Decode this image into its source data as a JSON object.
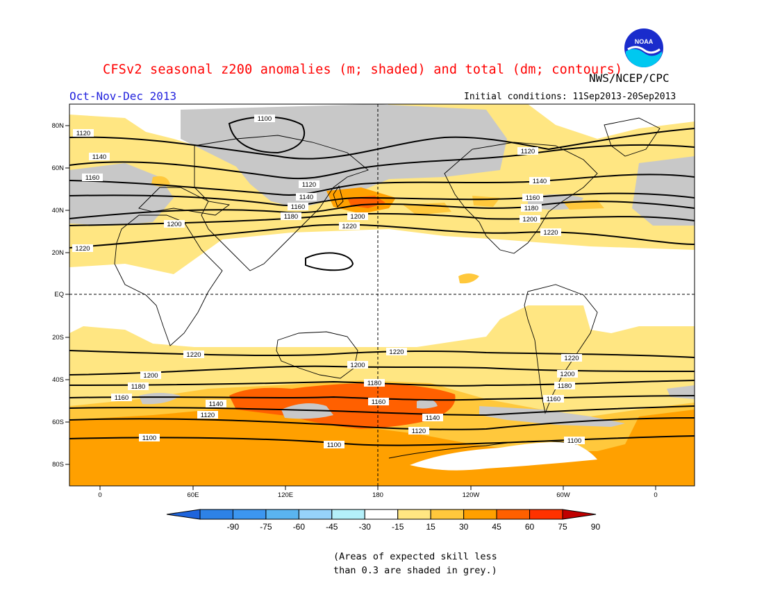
{
  "header": {
    "title": "CFSv2 seasonal z200 anomalies (m; shaded) and total (dm; contours)",
    "agency": "NWS/NCEP/CPC",
    "season": "Oct-Nov-Dec 2013",
    "initial_conditions": "Initial conditions: 11Sep2013-20Sep2013"
  },
  "logo": {
    "icon": "noaa-logo-icon",
    "text": "NOAA"
  },
  "axes": {
    "lat_ticks": [
      "80N",
      "60N",
      "40N",
      "20N",
      "EQ",
      "20S",
      "40S",
      "60S",
      "80S"
    ],
    "lon_ticks": [
      "0",
      "60E",
      "120E",
      "180",
      "120W",
      "60W",
      "0"
    ]
  },
  "colorbar": {
    "labels": [
      "-90",
      "-75",
      "-60",
      "-45",
      "-30",
      "-15",
      "15",
      "30",
      "45",
      "60",
      "75",
      "90"
    ],
    "colors": [
      "#1e64dc",
      "#2d82e6",
      "#3c96f0",
      "#5ab4f0",
      "#96d2fa",
      "#b4f0fa",
      "#ffffff",
      "#ffe682",
      "#ffc83c",
      "#ffa000",
      "#ff6000",
      "#ff3200",
      "#c00000"
    ]
  },
  "contours": [
    {
      "label": "1220"
    },
    {
      "label": "1200"
    },
    {
      "label": "1180"
    },
    {
      "label": "1160"
    },
    {
      "label": "1140"
    },
    {
      "label": "1120"
    },
    {
      "label": "1100"
    }
  ],
  "note": {
    "line1": "(Areas of expected skill less",
    "line2": "than 0.3 are shaded in grey.)"
  }
}
